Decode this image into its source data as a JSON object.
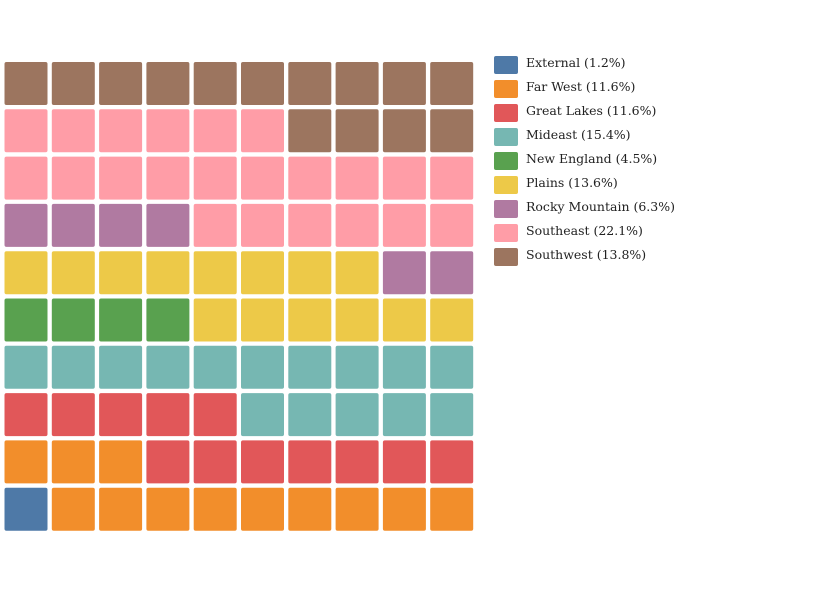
{
  "chart_data": {
    "type": "waffle",
    "grid": {
      "rows": 10,
      "cols": 10,
      "fill_order": "bottom-left, row by row upward"
    },
    "categories": [
      "External",
      "Far West",
      "Great Lakes",
      "Mideast",
      "New England",
      "Plains",
      "Rocky Mountain",
      "Southeast",
      "Southwest"
    ],
    "percentages": [
      1.2,
      11.6,
      11.6,
      15.4,
      4.5,
      13.6,
      6.3,
      22.1,
      13.8
    ],
    "squares": [
      1,
      12,
      12,
      15,
      4,
      14,
      6,
      22,
      14
    ],
    "colors": [
      "#4e79a7",
      "#f28e2b",
      "#e15759",
      "#76b7b2",
      "#59a14f",
      "#edc948",
      "#b07aa1",
      "#ff9da7",
      "#9c755f"
    ],
    "legend": {
      "placement": "right",
      "labels": [
        "External (1.2%)",
        "Far West (11.6%)",
        "Great Lakes (11.6%)",
        "Mideast (15.4%)",
        "New England (4.5%)",
        "Plains (13.6%)",
        "Rocky Mountain (6.3%)",
        "Southeast (22.1%)",
        "Southwest (13.8%)"
      ]
    }
  }
}
